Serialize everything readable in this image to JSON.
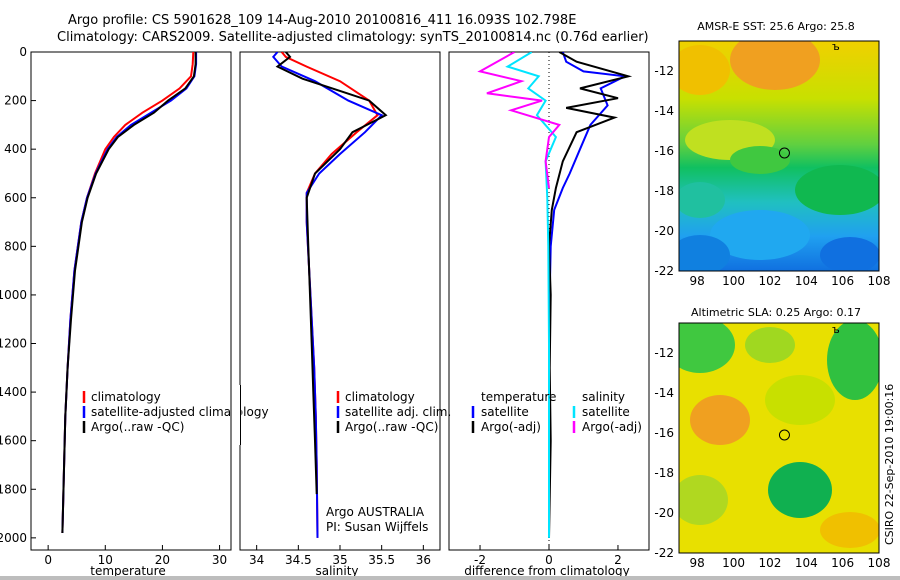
{
  "header": {
    "line1": "Argo profile: CS 5901628_109 14-Aug-2010 20100816_411 16.093S 102.798E",
    "line2": "Climatology: CARS2009. Satellite-adjusted climatology: synTS_20100814.nc (0.76d earlier)"
  },
  "colors": {
    "climatology": "#ff0000",
    "satellite": "#0000ff",
    "argo": "#000000",
    "salinity_satellite": "#00e5ff",
    "salinity_argo": "#ff00ff"
  },
  "chart_data": [
    {
      "type": "line",
      "panel": "temperature",
      "xlabel": "temperature",
      "ylabel": "",
      "xlim": [
        -3,
        32
      ],
      "ylim": [
        2050,
        0
      ],
      "xticks": [
        0,
        10,
        20,
        30
      ],
      "yticks": [
        0,
        200,
        400,
        600,
        800,
        1000,
        1200,
        1400,
        1600,
        1800,
        2000
      ],
      "legend": [
        "climatology",
        "satellite-adjusted climatology",
        "Argo(..raw -QC)"
      ],
      "series": [
        {
          "name": "climatology",
          "color": "#ff0000",
          "x": [
            25.4,
            25.3,
            25.0,
            23.0,
            20.0,
            16.5,
            13.5,
            11.5,
            10.0,
            8.2,
            6.8,
            5.8,
            4.6,
            3.9,
            3.4,
            3.0,
            2.5
          ],
          "y": [
            0,
            50,
            100,
            150,
            200,
            250,
            300,
            350,
            400,
            500,
            600,
            700,
            900,
            1100,
            1300,
            1500,
            1980
          ]
        },
        {
          "name": "satellite-adjusted climatology",
          "color": "#0000ff",
          "x": [
            25.9,
            25.9,
            25.6,
            24.2,
            21.5,
            18.0,
            14.5,
            12.0,
            10.4,
            8.3,
            6.8,
            5.8,
            4.6,
            3.9,
            3.4,
            3.0,
            2.5
          ],
          "y": [
            0,
            50,
            100,
            150,
            200,
            250,
            300,
            350,
            400,
            500,
            600,
            700,
            900,
            1100,
            1300,
            1500,
            1980
          ]
        },
        {
          "name": "Argo(..raw -QC)",
          "color": "#000000",
          "x": [
            25.8,
            25.8,
            25.5,
            24.0,
            21.0,
            18.5,
            15.0,
            12.2,
            10.6,
            8.4,
            6.9,
            5.9,
            4.7,
            4.0,
            3.4,
            3.0,
            2.5
          ],
          "y": [
            0,
            50,
            100,
            150,
            200,
            250,
            300,
            350,
            400,
            500,
            600,
            700,
            900,
            1100,
            1300,
            1500,
            1980
          ]
        }
      ]
    },
    {
      "type": "line",
      "panel": "salinity",
      "xlabel": "salinity",
      "xlim": [
        33.8,
        36.2
      ],
      "ylim": [
        2050,
        0
      ],
      "xticks": [
        34,
        34.5,
        35,
        35.5,
        36
      ],
      "legend": [
        "climatology",
        "satellite adj. clim.",
        "Argo(..raw -QC)"
      ],
      "series": [
        {
          "name": "climatology",
          "color": "#ff0000",
          "x": [
            34.3,
            34.35,
            34.6,
            35.0,
            35.35,
            35.45,
            35.2,
            34.9,
            34.7,
            34.6,
            34.6,
            34.63,
            34.66,
            34.69,
            34.71,
            34.72,
            34.73
          ],
          "y": [
            0,
            20,
            60,
            120,
            200,
            260,
            330,
            420,
            500,
            580,
            700,
            900,
            1100,
            1300,
            1500,
            1700,
            2000
          ]
        },
        {
          "name": "satellite adj. clim.",
          "color": "#0000ff",
          "x": [
            34.25,
            34.2,
            34.3,
            34.7,
            35.1,
            35.5,
            35.3,
            35.0,
            34.75,
            34.6,
            34.6,
            34.63,
            34.66,
            34.69,
            34.71,
            34.72,
            34.73
          ],
          "y": [
            0,
            20,
            60,
            120,
            200,
            260,
            330,
            420,
            500,
            580,
            700,
            900,
            1100,
            1300,
            1500,
            1700,
            2000
          ]
        },
        {
          "name": "Argo(..raw -QC)",
          "color": "#000000",
          "x": [
            34.35,
            34.4,
            34.25,
            34.55,
            35.0,
            35.35,
            35.55,
            35.15,
            35.0,
            34.7,
            34.6,
            34.62,
            34.64,
            34.66,
            34.68,
            34.7,
            34.72
          ],
          "y": [
            0,
            20,
            60,
            110,
            160,
            200,
            260,
            330,
            400,
            500,
            600,
            800,
            1000,
            1200,
            1400,
            1600,
            1820
          ]
        }
      ],
      "annotation": {
        "line1": "Argo AUSTRALIA",
        "line2": "PI: Susan Wijffels"
      }
    },
    {
      "type": "line",
      "panel": "difference",
      "xlabel": "difference from climatology",
      "xlim": [
        -2.9,
        2.9
      ],
      "ylim": [
        2050,
        0
      ],
      "xticks": [
        -2,
        0,
        2
      ],
      "legend_left_header": "temperature",
      "legend_right_header": "salinity",
      "legend": [
        "satellite",
        "Argo(-adj)",
        "satellite",
        "Argo(-adj)"
      ],
      "series": [
        {
          "name": "temperature satellite",
          "color": "#0000ff",
          "x": [
            0.4,
            0.5,
            1.0,
            2.2,
            1.5,
            1.7,
            1.2,
            0.9,
            0.6,
            0.4,
            0.15,
            0.05,
            0.02,
            0.0,
            0.0,
            0.0
          ],
          "y": [
            0,
            40,
            80,
            100,
            150,
            220,
            300,
            400,
            500,
            560,
            650,
            800,
            1000,
            1300,
            1600,
            2000
          ]
        },
        {
          "name": "temperature Argo(-adj)",
          "color": "#000000",
          "x": [
            0.3,
            0.8,
            2.3,
            0.9,
            2.0,
            0.5,
            1.9,
            0.8,
            0.4,
            0.2,
            0.08,
            0.0,
            0.05,
            0.02,
            0.05,
            0.0
          ],
          "y": [
            0,
            40,
            100,
            150,
            190,
            230,
            270,
            330,
            450,
            560,
            650,
            800,
            1000,
            1300,
            1600,
            2000
          ]
        },
        {
          "name": "salinity satellite",
          "color": "#00e5ff",
          "x": [
            -0.5,
            -1.2,
            -0.3,
            -0.6,
            -0.1,
            -0.35,
            0.2,
            -0.1,
            -0.05,
            -0.02,
            0.0,
            0.0
          ],
          "y": [
            0,
            60,
            100,
            150,
            200,
            260,
            350,
            450,
            600,
            800,
            1200,
            2000
          ]
        },
        {
          "name": "salinity Argo(-adj)",
          "color": "#ff00ff",
          "x": [
            -1.0,
            -2.0,
            -0.8,
            -1.8,
            -0.2,
            -1.1,
            0.3,
            0.0,
            -0.1,
            0.0
          ],
          "y": [
            0,
            80,
            120,
            170,
            200,
            240,
            300,
            350,
            450,
            560
          ]
        }
      ]
    },
    {
      "type": "heatmap",
      "panel": "sst-map",
      "title": "AMSR-E SST: 25.6 Argo: 25.8",
      "xlim": [
        97,
        108
      ],
      "ylim": [
        -22,
        -10.5
      ],
      "xticks": [
        98,
        100,
        102,
        104,
        106,
        108
      ],
      "yticks": [
        -12,
        -14,
        -16,
        -18,
        -20,
        -22
      ],
      "marker": {
        "lon": 102.8,
        "lat": -16.1
      }
    },
    {
      "type": "heatmap",
      "panel": "sla-map",
      "title": "Altimetric SLA: 0.25 Argo: 0.17",
      "xlim": [
        97,
        108
      ],
      "ylim": [
        -22,
        -10.5
      ],
      "xticks": [
        98,
        100,
        102,
        104,
        106,
        108
      ],
      "yticks": [
        -12,
        -14,
        -16,
        -18,
        -20,
        -22
      ],
      "marker": {
        "lon": 102.8,
        "lat": -16.1
      }
    }
  ],
  "footer": {
    "stamp": "CSIRO 22-Sep-2010 19:00:16"
  }
}
